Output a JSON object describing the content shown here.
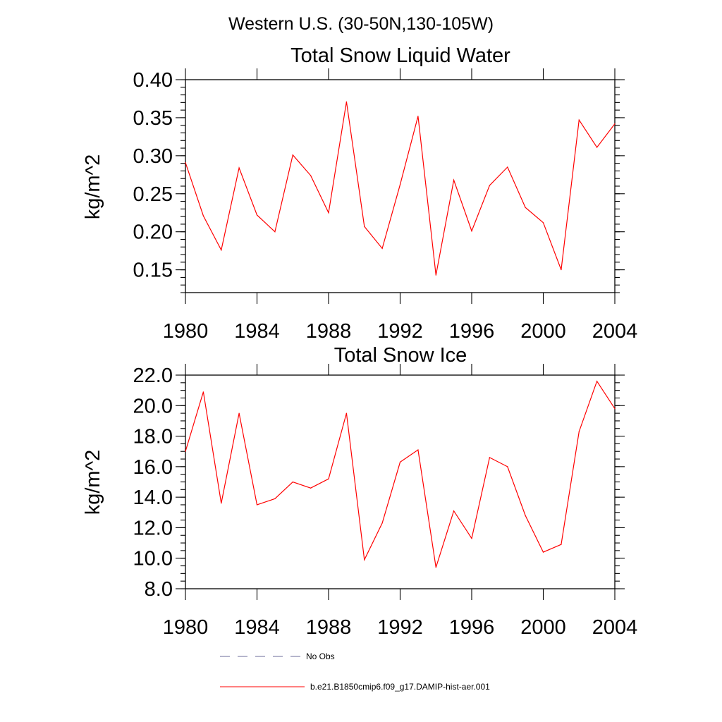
{
  "figure": {
    "suptitle": "Western U.S. (30-50N,130-105W)"
  },
  "chart_data": [
    {
      "type": "line",
      "title": "Total Snow Liquid Water",
      "xlabel": "",
      "ylabel": "kg/m^2",
      "xlim": [
        1980,
        2004
      ],
      "ylim": [
        0.12,
        0.4
      ],
      "x_ticks": [
        1980,
        1984,
        1988,
        1992,
        1996,
        2000,
        2004
      ],
      "y_ticks": [
        "0.15",
        "0.20",
        "0.25",
        "0.30",
        "0.35",
        "0.40"
      ],
      "y_minor_step": 0.01,
      "x_minor_step": 1,
      "x": [
        1980,
        1981,
        1982,
        1983,
        1984,
        1985,
        1986,
        1987,
        1988,
        1989,
        1990,
        1991,
        1992,
        1993,
        1994,
        1995,
        1996,
        1997,
        1998,
        1999,
        2000,
        2001,
        2002,
        2003,
        2004
      ],
      "series": [
        {
          "name": "b.e21.B1850cmip6.f09_g17.DAMIP-hist-aer.001",
          "color": "#ff0000",
          "values": [
            0.291,
            0.221,
            0.176,
            0.284,
            0.222,
            0.2,
            0.301,
            0.274,
            0.225,
            0.371,
            0.207,
            0.178,
            0.262,
            0.352,
            0.143,
            0.268,
            0.201,
            0.261,
            0.285,
            0.232,
            0.212,
            0.15,
            0.347,
            0.311,
            0.342
          ]
        }
      ]
    },
    {
      "type": "line",
      "title": "Total Snow Ice",
      "xlabel": "",
      "ylabel": "kg/m^2",
      "xlim": [
        1980,
        2004
      ],
      "ylim": [
        8.0,
        22.0
      ],
      "x_ticks": [
        1980,
        1984,
        1988,
        1992,
        1996,
        2000,
        2004
      ],
      "y_ticks": [
        "8.0",
        "10.0",
        "12.0",
        "14.0",
        "16.0",
        "18.0",
        "20.0",
        "22.0"
      ],
      "y_minor_step": 0.5,
      "x_minor_step": 1,
      "x": [
        1980,
        1981,
        1982,
        1983,
        1984,
        1985,
        1986,
        1987,
        1988,
        1989,
        1990,
        1991,
        1992,
        1993,
        1994,
        1995,
        1996,
        1997,
        1998,
        1999,
        2000,
        2001,
        2002,
        2003,
        2004
      ],
      "series": [
        {
          "name": "b.e21.B1850cmip6.f09_g17.DAMIP-hist-aer.001",
          "color": "#ff0000",
          "values": [
            17.0,
            20.9,
            13.6,
            19.5,
            13.5,
            13.9,
            15.0,
            14.6,
            15.2,
            19.5,
            9.9,
            12.3,
            16.3,
            17.1,
            9.4,
            13.1,
            11.3,
            16.6,
            16.0,
            12.8,
            10.4,
            10.9,
            18.3,
            21.6,
            19.8
          ]
        }
      ]
    }
  ],
  "legend": {
    "items": [
      {
        "label": "No Obs",
        "color": "#6b6b9a",
        "style": "dashed"
      },
      {
        "label": "b.e21.B1850cmip6.f09_g17.DAMIP-hist-aer.001",
        "color": "#ff0000",
        "style": "solid"
      }
    ]
  }
}
